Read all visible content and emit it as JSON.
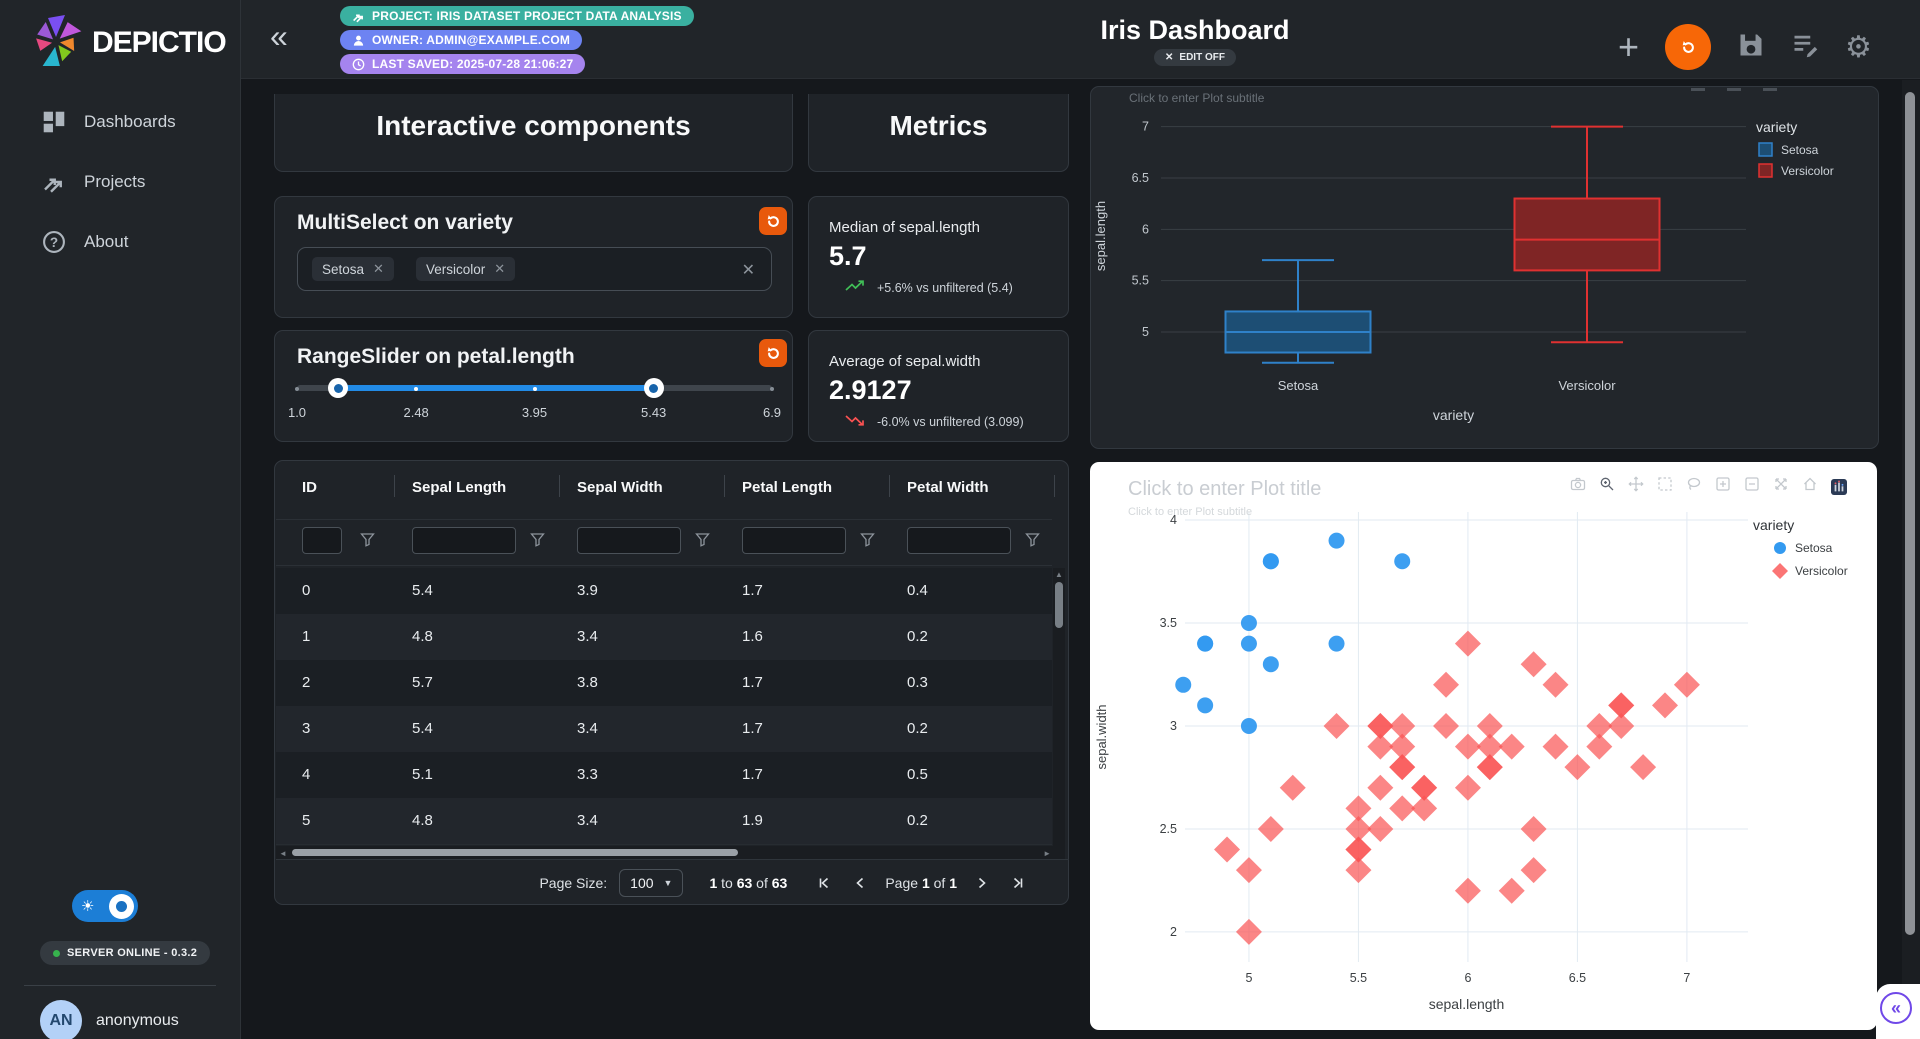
{
  "sidebar": {
    "brand": "DEPICTIO",
    "items": [
      {
        "icon": "dashboard-icon",
        "label": "Dashboards"
      },
      {
        "icon": "projects-icon",
        "label": "Projects"
      },
      {
        "icon": "about-icon",
        "label": "About"
      }
    ],
    "server_status": "SERVER ONLINE - 0.3.2",
    "user": {
      "initials": "AN",
      "name": "anonymous"
    }
  },
  "header": {
    "badges": {
      "project": "PROJECT: IRIS DATASET PROJECT DATA ANALYSIS",
      "owner": "OWNER: ADMIN@EXAMPLE.COM",
      "last_saved": "LAST SAVED: 2025-07-28 21:06:27"
    },
    "title": "Iris Dashboard",
    "edit_label": "EDIT OFF"
  },
  "sections": {
    "interactive_title": "Interactive components",
    "metrics_title": "Metrics"
  },
  "multiselect": {
    "title": "MultiSelect on variety",
    "chips": [
      "Setosa",
      "Versicolor"
    ]
  },
  "rangeslider": {
    "title": "RangeSlider on petal.length",
    "min": 1.0,
    "max": 6.9,
    "values": [
      1.51,
      5.43
    ],
    "marks": [
      {
        "v": 1.0,
        "label": "1.0"
      },
      {
        "v": 2.48,
        "label": "2.48"
      },
      {
        "v": 3.95,
        "label": "3.95"
      },
      {
        "v": 5.43,
        "label": "5.43"
      },
      {
        "v": 6.9,
        "label": "6.9"
      }
    ]
  },
  "metrics": [
    {
      "label": "Median of sepal.length",
      "value": "5.7",
      "trend": "up",
      "delta": "+5.6% vs unfiltered (5.4)"
    },
    {
      "label": "Average of sepal.width",
      "value": "2.9127",
      "trend": "down",
      "delta": "-6.0% vs unfiltered (3.099)"
    }
  ],
  "table": {
    "headers": [
      "ID",
      "Sepal Length",
      "Sepal Width",
      "Petal Length",
      "Petal Width"
    ],
    "rows": [
      [
        "0",
        "5.4",
        "3.9",
        "1.7",
        "0.4"
      ],
      [
        "1",
        "4.8",
        "3.4",
        "1.6",
        "0.2"
      ],
      [
        "2",
        "5.7",
        "3.8",
        "1.7",
        "0.3"
      ],
      [
        "3",
        "5.4",
        "3.4",
        "1.7",
        "0.2"
      ],
      [
        "4",
        "5.1",
        "3.3",
        "1.7",
        "0.5"
      ],
      [
        "5",
        "4.8",
        "3.4",
        "1.9",
        "0.2"
      ]
    ],
    "pagination": {
      "page_size_label": "Page Size:",
      "page_size_value": "100",
      "range_segments": [
        [
          "1",
          true
        ],
        [
          " to ",
          false
        ],
        [
          "63",
          true
        ],
        [
          " of ",
          false
        ],
        [
          "63",
          true
        ]
      ],
      "page_segments": [
        [
          "Page ",
          false
        ],
        [
          "1",
          true
        ],
        [
          " of ",
          false
        ],
        [
          "1",
          true
        ]
      ]
    }
  },
  "colors": {
    "badge_project": "#3ab0a0",
    "badge_owner": "#6d83f2",
    "badge_saved": "#a584ee",
    "accent_orange": "#e8590c",
    "trend_up": "#40c057",
    "trend_down": "#fa5252"
  },
  "chart_data": [
    {
      "id": "boxplot",
      "type": "box",
      "subtitle_placeholder": "Click to enter Plot subtitle",
      "xlabel": "variety",
      "ylabel": "sepal.length",
      "yticks": [
        5,
        5.5,
        6,
        6.5,
        7
      ],
      "ylim": [
        4.62,
        7.25
      ],
      "legend_title": "variety",
      "series": [
        {
          "name": "Setosa",
          "line": "#2f81c9",
          "fill": "#1d4e74",
          "min": 4.7,
          "q1": 4.8,
          "median": 5.0,
          "q3": 5.2,
          "max": 5.7
        },
        {
          "name": "Versicolor",
          "line": "#e03131",
          "fill": "#7f2525",
          "min": 4.9,
          "q1": 5.6,
          "median": 5.9,
          "q3": 6.3,
          "max": 7.0
        }
      ]
    },
    {
      "id": "scatter",
      "type": "scatter",
      "title_placeholder": "Click to enter Plot title",
      "subtitle_placeholder": "Click to enter Plot subtitle",
      "xlabel": "sepal.length",
      "ylabel": "sepal.width",
      "xticks": [
        5,
        5.5,
        6,
        6.5,
        7
      ],
      "yticks": [
        2,
        2.5,
        3,
        3.5,
        4
      ],
      "xlim": [
        4.708,
        7.279
      ],
      "ylim": [
        1.854,
        4.039
      ],
      "legend_title": "variety",
      "modebar": [
        "camera",
        "zoom",
        "pan",
        "box-select",
        "lasso",
        "zoom-in",
        "zoom-out",
        "autoscale",
        "home",
        "edit-chart"
      ],
      "series": [
        {
          "name": "Setosa",
          "marker": "circle",
          "color": "#339af0",
          "opacity": 0.95,
          "points": [
            [
              5.4,
              3.9
            ],
            [
              4.8,
              3.4
            ],
            [
              5.7,
              3.8
            ],
            [
              5.4,
              3.4
            ],
            [
              5.1,
              3.3
            ],
            [
              4.8,
              3.4
            ],
            [
              5.0,
              3.0
            ],
            [
              5.0,
              3.4
            ],
            [
              4.7,
              3.2
            ],
            [
              4.8,
              3.1
            ],
            [
              5.0,
              3.5
            ],
            [
              5.1,
              3.8
            ],
            [
              5.1,
              3.8
            ]
          ]
        },
        {
          "name": "Versicolor",
          "marker": "diamond",
          "color": "#fa5252",
          "opacity": 0.7,
          "points": [
            [
              7.0,
              3.2
            ],
            [
              6.4,
              3.2
            ],
            [
              6.9,
              3.1
            ],
            [
              5.5,
              2.3
            ],
            [
              6.5,
              2.8
            ],
            [
              5.7,
              2.8
            ],
            [
              6.3,
              3.3
            ],
            [
              4.9,
              2.4
            ],
            [
              6.6,
              2.9
            ],
            [
              5.2,
              2.7
            ],
            [
              5.0,
              2.0
            ],
            [
              5.9,
              3.0
            ],
            [
              6.0,
              2.2
            ],
            [
              6.1,
              2.9
            ],
            [
              5.6,
              2.9
            ],
            [
              6.7,
              3.1
            ],
            [
              5.6,
              3.0
            ],
            [
              5.8,
              2.7
            ],
            [
              6.2,
              2.2
            ],
            [
              5.6,
              2.5
            ],
            [
              5.9,
              3.2
            ],
            [
              6.1,
              2.8
            ],
            [
              6.3,
              2.5
            ],
            [
              6.1,
              2.8
            ],
            [
              6.4,
              2.9
            ],
            [
              6.6,
              3.0
            ],
            [
              6.8,
              2.8
            ],
            [
              6.7,
              3.0
            ],
            [
              6.0,
              2.9
            ],
            [
              5.7,
              2.6
            ],
            [
              5.5,
              2.4
            ],
            [
              5.5,
              2.4
            ],
            [
              5.8,
              2.7
            ],
            [
              6.0,
              2.7
            ],
            [
              5.4,
              3.0
            ],
            [
              6.0,
              3.4
            ],
            [
              6.7,
              3.1
            ],
            [
              6.3,
              2.3
            ],
            [
              5.6,
              3.0
            ],
            [
              5.5,
              2.5
            ],
            [
              5.5,
              2.6
            ],
            [
              6.1,
              3.0
            ],
            [
              5.8,
              2.6
            ],
            [
              5.0,
              2.3
            ],
            [
              5.6,
              2.7
            ],
            [
              5.7,
              3.0
            ],
            [
              5.7,
              2.9
            ],
            [
              6.2,
              2.9
            ],
            [
              5.1,
              2.5
            ],
            [
              5.7,
              2.8
            ]
          ]
        }
      ]
    }
  ]
}
